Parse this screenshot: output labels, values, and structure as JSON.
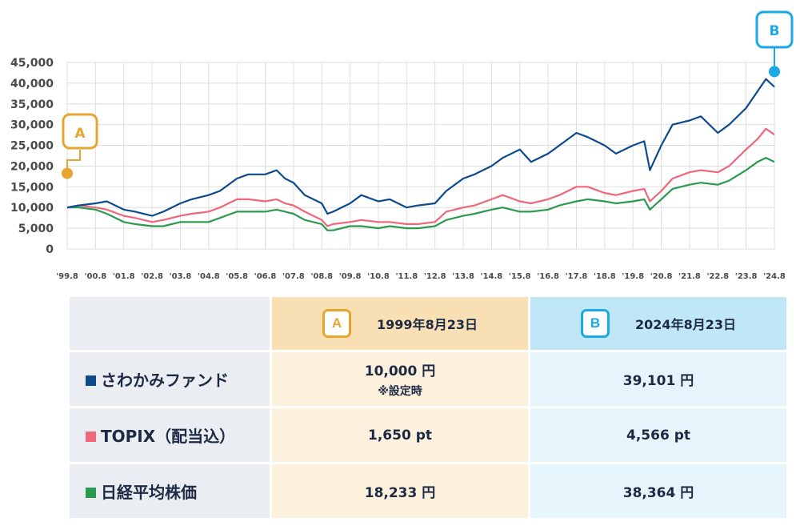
{
  "chart_data": {
    "type": "line",
    "y_ticks": [
      "45,000",
      "40,000",
      "35,000",
      "30,000",
      "25,000",
      "20,000",
      "15,000",
      "10,000",
      "5,000",
      "0"
    ],
    "ylim": [
      0,
      45000
    ],
    "x_ticks": [
      "'99.8",
      "'00.8",
      "'01.8",
      "'02.8",
      "'03.8",
      "'04.8",
      "'05.8",
      "'06.8",
      "'07.8",
      "'08.8",
      "'09.8",
      "'10.8",
      "'11.8",
      "'12.8",
      "'13.8",
      "'14.8",
      "'15.8",
      "'16.8",
      "'17.8",
      "'18.8",
      "'19.8",
      "'20.8",
      "'21.8",
      "'22.8",
      "'23.8",
      "'24.8"
    ],
    "x_years": [
      1999.6,
      2024.6
    ],
    "grid": true,
    "series": [
      {
        "name": "さわかみファンド",
        "color": "#0d4a8c",
        "x": [
          1999.6,
          2000.0,
          2000.6,
          2001.0,
          2001.6,
          2002.0,
          2002.6,
          2003.0,
          2003.6,
          2004.0,
          2004.6,
          2005.0,
          2005.6,
          2006.0,
          2006.6,
          2007.0,
          2007.3,
          2007.6,
          2008.0,
          2008.6,
          2008.8,
          2009.0,
          2009.6,
          2010.0,
          2010.6,
          2011.0,
          2011.6,
          2012.0,
          2012.6,
          2013.0,
          2013.6,
          2014.0,
          2014.6,
          2015.0,
          2015.6,
          2016.0,
          2016.6,
          2017.0,
          2017.6,
          2018.0,
          2018.6,
          2019.0,
          2019.6,
          2020.0,
          2020.2,
          2020.6,
          2021.0,
          2021.6,
          2022.0,
          2022.6,
          2023.0,
          2023.6,
          2024.0,
          2024.3,
          2024.6
        ],
        "values": [
          10000,
          10500,
          11000,
          11500,
          9500,
          9000,
          8000,
          9000,
          11000,
          12000,
          13000,
          14000,
          17000,
          18000,
          18000,
          19000,
          17000,
          16000,
          13000,
          11000,
          8500,
          9000,
          11000,
          13000,
          11500,
          12000,
          10000,
          10500,
          11000,
          14000,
          17000,
          18000,
          20000,
          22000,
          24000,
          21000,
          23000,
          25000,
          28000,
          27000,
          25000,
          23000,
          25000,
          26000,
          19000,
          25000,
          30000,
          31000,
          32000,
          28000,
          30000,
          34000,
          38000,
          41000,
          39101
        ]
      },
      {
        "name": "TOPIX（配当込）",
        "color": "#f0667a",
        "x": [
          1999.6,
          2000.0,
          2000.6,
          2001.0,
          2001.6,
          2002.0,
          2002.6,
          2003.0,
          2003.6,
          2004.0,
          2004.6,
          2005.0,
          2005.6,
          2006.0,
          2006.6,
          2007.0,
          2007.3,
          2007.6,
          2008.0,
          2008.6,
          2008.8,
          2009.0,
          2009.6,
          2010.0,
          2010.6,
          2011.0,
          2011.6,
          2012.0,
          2012.6,
          2013.0,
          2013.6,
          2014.0,
          2014.6,
          2015.0,
          2015.6,
          2016.0,
          2016.6,
          2017.0,
          2017.6,
          2018.0,
          2018.6,
          2019.0,
          2019.6,
          2020.0,
          2020.2,
          2020.6,
          2021.0,
          2021.6,
          2022.0,
          2022.6,
          2023.0,
          2023.6,
          2024.0,
          2024.3,
          2024.6
        ],
        "values": [
          10000,
          10500,
          10000,
          9500,
          8000,
          7500,
          6500,
          7000,
          8000,
          8500,
          9000,
          10000,
          12000,
          12000,
          11500,
          12000,
          11000,
          10500,
          9000,
          7000,
          5500,
          6000,
          6500,
          7000,
          6500,
          6500,
          6000,
          6000,
          6500,
          9000,
          10000,
          10500,
          12000,
          13000,
          11500,
          11000,
          12000,
          13000,
          15000,
          15000,
          13500,
          13000,
          14000,
          14500,
          11500,
          14000,
          17000,
          18500,
          19000,
          18500,
          20000,
          24000,
          26500,
          29000,
          27600
        ]
      },
      {
        "name": "日経平均株価",
        "color": "#2a9a4e",
        "x": [
          1999.6,
          2000.0,
          2000.6,
          2001.0,
          2001.6,
          2002.0,
          2002.6,
          2003.0,
          2003.6,
          2004.0,
          2004.6,
          2005.0,
          2005.6,
          2006.0,
          2006.6,
          2007.0,
          2007.3,
          2007.6,
          2008.0,
          2008.6,
          2008.8,
          2009.0,
          2009.6,
          2010.0,
          2010.6,
          2011.0,
          2011.6,
          2012.0,
          2012.6,
          2013.0,
          2013.6,
          2014.0,
          2014.6,
          2015.0,
          2015.6,
          2016.0,
          2016.6,
          2017.0,
          2017.6,
          2018.0,
          2018.6,
          2019.0,
          2019.6,
          2020.0,
          2020.2,
          2020.6,
          2021.0,
          2021.6,
          2022.0,
          2022.6,
          2023.0,
          2023.6,
          2024.0,
          2024.3,
          2024.6
        ],
        "values": [
          10000,
          10000,
          9500,
          8500,
          6500,
          6000,
          5500,
          5500,
          6500,
          6500,
          6500,
          7500,
          9000,
          9000,
          9000,
          9500,
          9000,
          8500,
          7000,
          6000,
          4500,
          4500,
          5500,
          5500,
          5000,
          5500,
          5000,
          5000,
          5500,
          7000,
          8000,
          8500,
          9500,
          10000,
          9000,
          9000,
          9500,
          10500,
          11500,
          12000,
          11500,
          11000,
          11500,
          12000,
          9500,
          12000,
          14500,
          15500,
          16000,
          15500,
          16500,
          19000,
          21000,
          22000,
          21000
        ]
      }
    ],
    "annotations": [
      {
        "label": "A",
        "x": 1999.6,
        "y": 18233,
        "color": "#e6a531"
      },
      {
        "label": "B",
        "x": 2024.6,
        "y": 42800,
        "color": "#1aa9e6"
      }
    ]
  },
  "table": {
    "headers": {
      "a_letter": "A",
      "a_date": "1999年8月23日",
      "b_letter": "B",
      "b_date": "2024年8月23日"
    },
    "rows": [
      {
        "label": "さわかみファンド",
        "color": "#0d4a8c",
        "a": "10,000 円",
        "a_note": "※設定時",
        "b": "39,101 円"
      },
      {
        "label": "TOPIX（配当込）",
        "color": "#f0667a",
        "a": "1,650 pt",
        "b": "4,566 pt"
      },
      {
        "label": "日経平均株価",
        "color": "#2a9a4e",
        "a": "18,233 円",
        "b": "38,364 円"
      }
    ]
  }
}
